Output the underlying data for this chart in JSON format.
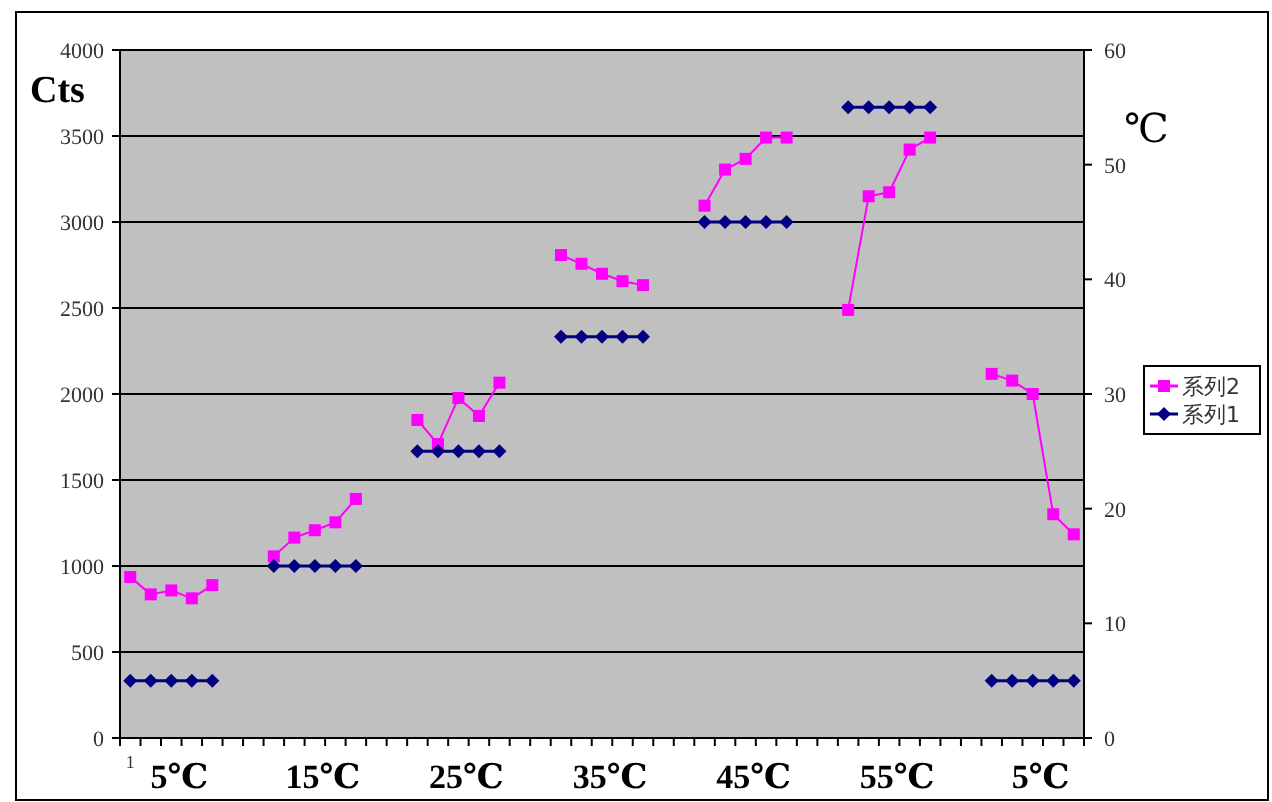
{
  "chart_data": {
    "type": "line",
    "categories": [
      "1",
      null,
      null,
      null,
      null,
      null,
      null,
      null,
      null,
      null,
      null,
      null,
      null,
      null,
      null,
      null,
      null,
      null,
      null,
      null,
      null,
      null,
      null,
      null,
      null,
      null,
      null,
      null,
      null,
      null,
      null,
      null,
      null,
      null,
      null,
      null,
      null,
      null,
      null,
      null,
      null,
      null,
      null,
      null,
      null,
      null,
      null
    ],
    "series": [
      {
        "name": "系列2",
        "color": "#ff00ff",
        "marker": "square",
        "values": [
          936,
          835,
          858,
          812,
          889,
          null,
          null,
          1056,
          1165,
          1208,
          1254,
          1390,
          null,
          null,
          1849,
          1709,
          1977,
          1872,
          2066,
          null,
          null,
          2808,
          2757,
          2699,
          2656,
          2633,
          null,
          null,
          3095,
          3305,
          3367,
          3491,
          3491,
          null,
          null,
          2489,
          3150,
          3173,
          3421,
          3491,
          null,
          null,
          2117,
          2078,
          2000,
          1301,
          1184
        ]
      },
      {
        "name": "系列1",
        "color": "#000080",
        "marker": "diamond",
        "axis": "y2",
        "values": [
          5,
          5,
          5,
          5,
          5,
          null,
          null,
          15,
          15,
          15,
          15,
          15,
          null,
          null,
          25,
          25,
          25,
          25,
          25,
          null,
          null,
          35,
          35,
          35,
          35,
          35,
          null,
          null,
          45,
          45,
          45,
          45,
          45,
          null,
          null,
          55,
          55,
          55,
          55,
          55,
          null,
          null,
          5,
          5,
          5,
          5,
          5
        ]
      }
    ],
    "ylabel": "Cts",
    "y2label": "℃",
    "ylim": [
      0,
      4000
    ],
    "yticks": [
      0,
      500,
      1000,
      1500,
      2000,
      2500,
      3000,
      3500,
      4000
    ],
    "y2lim": [
      0,
      60
    ],
    "y2ticks": [
      0,
      10,
      20,
      30,
      40,
      50,
      60
    ],
    "grid": "y",
    "legend": "right",
    "annotations": [
      "5℃",
      "15℃",
      "25℃",
      "35℃",
      "45℃",
      "55℃",
      "5℃"
    ]
  }
}
